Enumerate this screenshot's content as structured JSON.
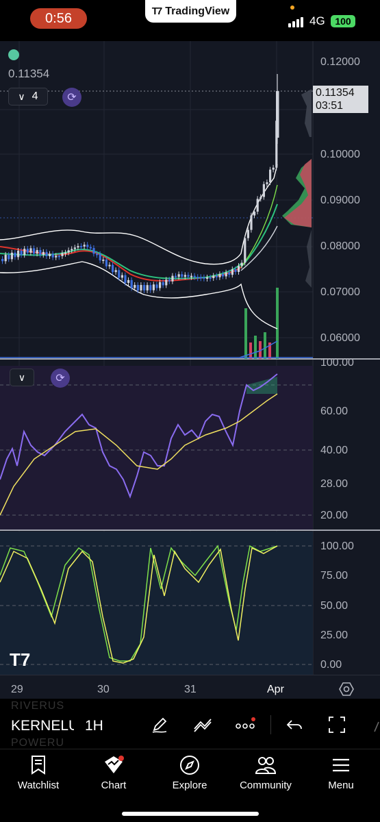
{
  "status": {
    "time": "0:56",
    "app_label": "TradingView",
    "network": "4G",
    "battery": "100"
  },
  "chart": {
    "last_price": "0.11354",
    "indicator_count": "4",
    "price_tag": "0.11354",
    "countdown": "03:51",
    "price_axis": [
      "0.12000",
      "0.10000",
      "0.09000",
      "0.08000",
      "0.07000",
      "0.06000"
    ],
    "rsi_axis": [
      "100.00",
      "60.00",
      "40.00",
      "28.00",
      "20.00"
    ],
    "stoch_axis": [
      "100.00",
      "75.00",
      "50.00",
      "25.00",
      "0.00"
    ],
    "time_axis": [
      "29",
      "30",
      "31",
      "Apr"
    ],
    "colors": {
      "background": "#141823",
      "up": "#d1d4dc",
      "down": "#3d6fe0",
      "rsi": "#8a6cf0",
      "rsi_ma": "#f0e060",
      "stoch_k": "#7ee04a",
      "stoch_d": "#f0f060"
    }
  },
  "toolbar": {
    "ghost_above": "RIVERUS",
    "symbol": "KERNELU",
    "ghost_below": "POWERU",
    "interval": "1H"
  },
  "tabs": [
    {
      "label": "Watchlist",
      "icon": "bookmark-icon"
    },
    {
      "label": "Chart",
      "icon": "chart-icon"
    },
    {
      "label": "Explore",
      "icon": "compass-icon"
    },
    {
      "label": "Community",
      "icon": "people-icon"
    },
    {
      "label": "Menu",
      "icon": "menu-icon"
    }
  ]
}
